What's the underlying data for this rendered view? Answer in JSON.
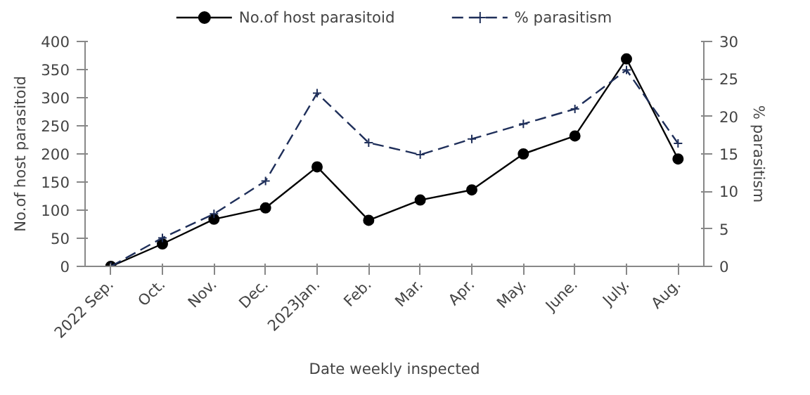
{
  "chart_data": {
    "type": "line",
    "xlabel": "Date weekly inspected",
    "ylabel": "No.of host parasitoid",
    "y2label": "% parasitism",
    "categories": [
      "2022 Sep.",
      "Oct.",
      "Nov.",
      "Dec.",
      "2023Jan.",
      "Feb.",
      "Mar.",
      "Apr.",
      "May.",
      "June.",
      "July.",
      "Aug."
    ],
    "series": [
      {
        "name": "No.of host parasitoid",
        "color": "#000000",
        "marker": "circle",
        "line_style": "solid",
        "values": [
          0,
          40,
          84,
          104,
          177,
          82,
          118,
          136,
          200,
          232,
          369,
          191
        ]
      },
      {
        "name": "% parasitism",
        "color": "#1f2f5a",
        "marker": "cross",
        "line_style": "dashed",
        "axis": "y2",
        "values": [
          0,
          3.8,
          7,
          11.4,
          23.1,
          16.5,
          14.9,
          17,
          19,
          21,
          26.2,
          16.4
        ]
      }
    ],
    "ylim": [
      0,
      400
    ],
    "yticks": [
      0,
      50,
      100,
      150,
      200,
      250,
      300,
      350,
      400
    ],
    "y2lim": [
      0,
      30
    ],
    "y2ticks": [
      0,
      5,
      10,
      15,
      20,
      25,
      30
    ],
    "grid": false,
    "legend": "top"
  }
}
